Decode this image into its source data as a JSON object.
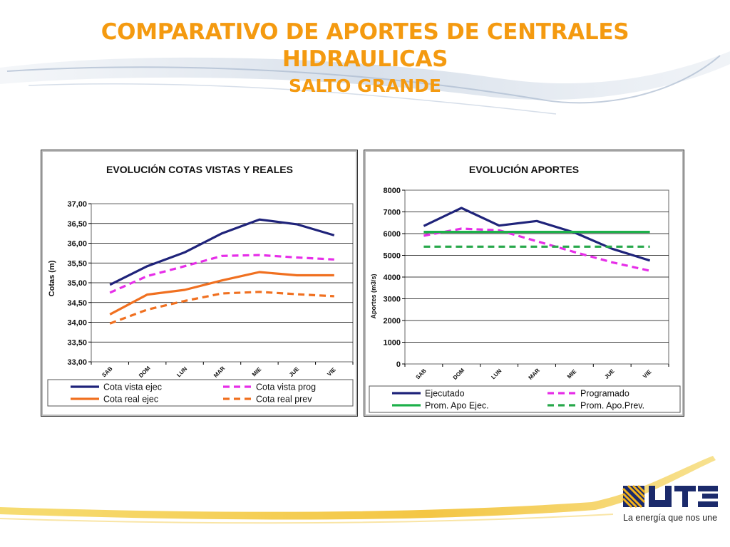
{
  "title": {
    "line1": "COMPARATIVO DE APORTES DE CENTRALES",
    "line2": "HIDRAULICAS",
    "line3": "SALTO GRANDE"
  },
  "logo": {
    "text": "UTE",
    "tagline": "La energía que nos une"
  },
  "colors": {
    "title": "#F49A10",
    "navy": "#1F237A",
    "magenta": "#E62EE8",
    "orange": "#F07020",
    "green": "#1DB04A",
    "green_dash": "#27A84A"
  },
  "chart_data": [
    {
      "type": "line",
      "title": "EVOLUCIÓN  COTAS VISTAS Y REALES",
      "xlabel": "",
      "ylabel": "Cotas (m)",
      "categories": [
        "SAB",
        "DOM",
        "LUN",
        "MAR",
        "MIE",
        "JUE",
        "VIE"
      ],
      "ylim": [
        33,
        37
      ],
      "yticks": [
        "33,00",
        "33,50",
        "34,00",
        "34,50",
        "35,00",
        "35,50",
        "36,00",
        "36,50",
        "37,00"
      ],
      "grid": true,
      "legend_position": "bottom",
      "series": [
        {
          "name": "Cota vista ejec",
          "values": [
            34.95,
            35.42,
            35.77,
            36.25,
            36.6,
            36.48,
            36.2
          ],
          "color": "#1F237A",
          "dashed": false
        },
        {
          "name": "Cota vista prog",
          "values": [
            34.75,
            35.17,
            35.42,
            35.68,
            35.7,
            35.64,
            35.59
          ],
          "color": "#E62EE8",
          "dashed": true
        },
        {
          "name": "Cota real ejec",
          "values": [
            34.2,
            34.7,
            34.82,
            35.06,
            35.27,
            35.19,
            35.19
          ],
          "color": "#F07020",
          "dashed": false
        },
        {
          "name": "Cota real prev",
          "values": [
            33.97,
            34.32,
            34.54,
            34.73,
            34.77,
            34.71,
            34.66
          ],
          "color": "#F07020",
          "dashed": true
        }
      ]
    },
    {
      "type": "line",
      "title": "EVOLUCIÓN  APORTES",
      "xlabel": "",
      "ylabel": "Aportes (m3/s)",
      "categories": [
        "SAB",
        "DOM",
        "LUN",
        "MAR",
        "MIE",
        "JUE",
        "VIE"
      ],
      "ylim": [
        0,
        8000
      ],
      "yticks": [
        "0",
        "1000",
        "2000",
        "3000",
        "4000",
        "5000",
        "6000",
        "7000",
        "8000"
      ],
      "grid": true,
      "legend_position": "bottom",
      "series": [
        {
          "name": "Ejecutado",
          "values": [
            6350,
            7180,
            6370,
            6580,
            6050,
            5300,
            4760
          ],
          "color": "#1F237A",
          "dashed": false
        },
        {
          "name": "Programado",
          "values": [
            5900,
            6230,
            6150,
            5650,
            5150,
            4680,
            4290
          ],
          "color": "#E62EE8",
          "dashed": true
        },
        {
          "name": "Prom. Apo Ejec.",
          "values": [
            6080,
            6080,
            6080,
            6080,
            6080,
            6080,
            6080
          ],
          "color": "#1DB04A",
          "dashed": false
        },
        {
          "name": "Prom. Apo.Prev.",
          "values": [
            5400,
            5400,
            5400,
            5400,
            5400,
            5400,
            5400
          ],
          "color": "#27A84A",
          "dashed": true
        }
      ]
    }
  ]
}
